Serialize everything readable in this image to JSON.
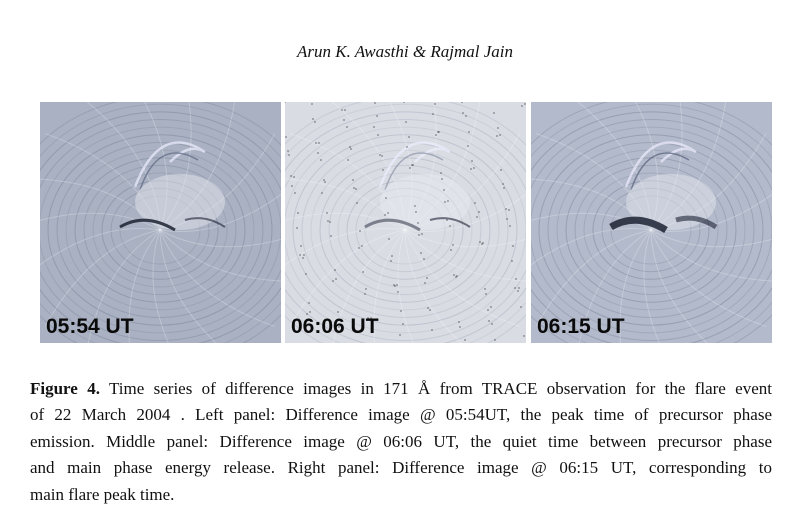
{
  "header": {
    "authors": "Arun K. Awasthi & Rajmal Jain"
  },
  "figure": {
    "panels": [
      {
        "label": "05:54 UT"
      },
      {
        "label": "06:06 UT"
      },
      {
        "label": "06:15 UT"
      }
    ],
    "caption": {
      "label": "Figure 4.",
      "lines": [
        "Time series of difference images in 171 Å from TRACE observation for the flare event",
        "of 22 March 2004 . Left panel: Difference image @ 05:54UT, the peak time of precursor phase",
        "emission. Middle panel: Difference image @ 06:06 UT, the quiet time between precursor phase",
        "and main phase energy release. Right panel: Difference image @ 06:15 UT, corresponding to",
        "main flare peak time."
      ]
    }
  }
}
